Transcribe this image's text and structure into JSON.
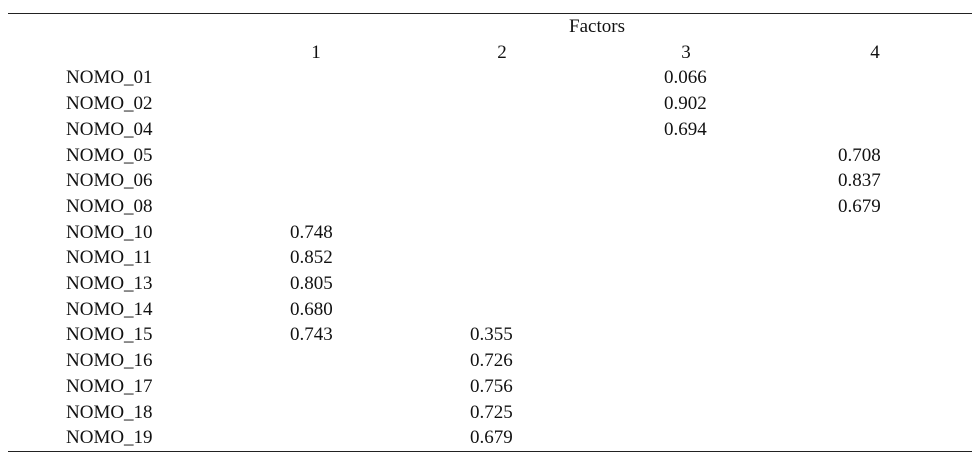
{
  "table": {
    "group_header": "Factors",
    "factor_columns": [
      "1",
      "2",
      "3",
      "4"
    ],
    "rows": [
      {
        "label": "NOMO_01",
        "f1": "",
        "f2": "",
        "f3": "0.066",
        "f4": ""
      },
      {
        "label": "NOMO_02",
        "f1": "",
        "f2": "",
        "f3": "0.902",
        "f4": ""
      },
      {
        "label": "NOMO_04",
        "f1": "",
        "f2": "",
        "f3": "0.694",
        "f4": ""
      },
      {
        "label": "NOMO_05",
        "f1": "",
        "f2": "",
        "f3": "",
        "f4": "0.708"
      },
      {
        "label": "NOMO_06",
        "f1": "",
        "f2": "",
        "f3": "",
        "f4": "0.837"
      },
      {
        "label": "NOMO_08",
        "f1": "",
        "f2": "",
        "f3": "",
        "f4": "0.679"
      },
      {
        "label": "NOMO_10",
        "f1": "0.748",
        "f2": "",
        "f3": "",
        "f4": ""
      },
      {
        "label": "NOMO_11",
        "f1": "0.852",
        "f2": "",
        "f3": "",
        "f4": ""
      },
      {
        "label": "NOMO_13",
        "f1": "0.805",
        "f2": "",
        "f3": "",
        "f4": ""
      },
      {
        "label": "NOMO_14",
        "f1": "0.680",
        "f2": "",
        "f3": "",
        "f4": ""
      },
      {
        "label": "NOMO_15",
        "f1": "0.743",
        "f2": "0.355",
        "f3": "",
        "f4": ""
      },
      {
        "label": "NOMO_16",
        "f1": "",
        "f2": "0.726",
        "f3": "",
        "f4": ""
      },
      {
        "label": "NOMO_17",
        "f1": "",
        "f2": "0.756",
        "f3": "",
        "f4": ""
      },
      {
        "label": "NOMO_18",
        "f1": "",
        "f2": "0.725",
        "f3": "",
        "f4": ""
      },
      {
        "label": "NOMO_19",
        "f1": "",
        "f2": "0.679",
        "f3": "",
        "f4": ""
      }
    ]
  }
}
